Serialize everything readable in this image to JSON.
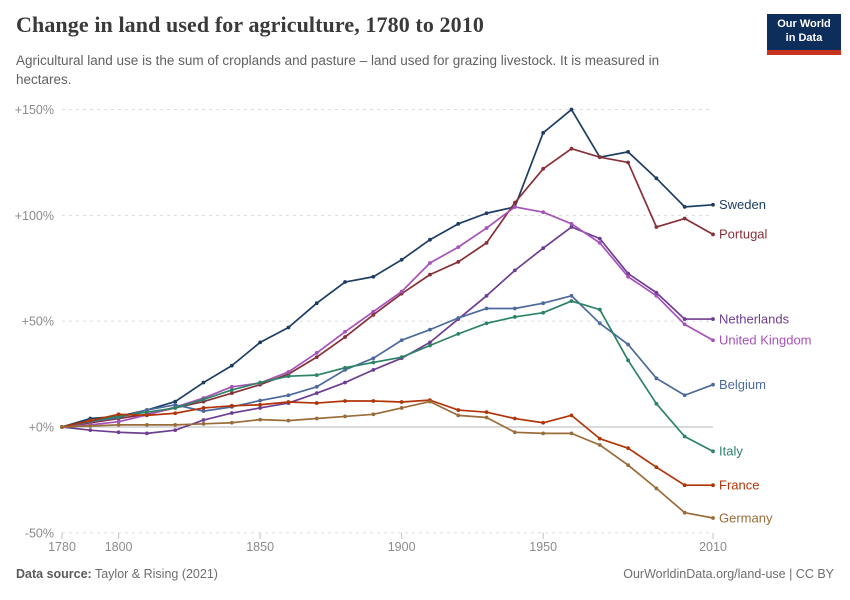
{
  "header": {
    "title": "Change in land used for agriculture, 1780 to 2010",
    "subtitle": "Agricultural land use is the sum of croplands and pasture – land used for grazing livestock. It is measured in hectares.",
    "logo": {
      "line1": "Our World",
      "line2": "in Data"
    }
  },
  "footer": {
    "datasource_label": "Data source:",
    "datasource_value": "Taylor & Rising (2021)",
    "attribution": "OurWorldinData.org/land-use | CC BY"
  },
  "colors": {
    "grid_dashed": "#dcdcdc",
    "zero_line": "#b5b5b5",
    "tick": "#c0c0c0",
    "axis_text": "#8b8b8b",
    "logo_bg": "#0d2d5a",
    "logo_bar": "#c8331f"
  },
  "chart_data": {
    "type": "line",
    "title": "Change in land used for agriculture, 1780 to 2010",
    "unit": "%",
    "grid": true,
    "legend_position": "end-of-line",
    "xlim": [
      1780,
      2010
    ],
    "ylim": [
      -50,
      155
    ],
    "xticks": [
      1780,
      1800,
      1850,
      1900,
      1950,
      2010
    ],
    "yticks": [
      -50,
      0,
      50,
      100,
      150
    ],
    "ytick_labels": [
      "-50%",
      "+0%",
      "+50%",
      "+100%",
      "+150%"
    ],
    "x": [
      1780,
      1790,
      1800,
      1810,
      1820,
      1830,
      1840,
      1850,
      1860,
      1870,
      1880,
      1890,
      1900,
      1910,
      1920,
      1930,
      1940,
      1950,
      1960,
      1970,
      1980,
      1990,
      2000,
      2010
    ],
    "series": [
      {
        "name": "Sweden",
        "color": "#1d3d63",
        "values": [
          0,
          4,
          5,
          8,
          12,
          21,
          29,
          40,
          47,
          58.5,
          68.5,
          71,
          79,
          88.5,
          96,
          101,
          104,
          139,
          150,
          127.5,
          130,
          117.5,
          104,
          105
        ]
      },
      {
        "name": "Portugal",
        "color": "#883039",
        "values": [
          0,
          2,
          4,
          6,
          9,
          12,
          16,
          20,
          25,
          33,
          42.5,
          53,
          63,
          72,
          78,
          87,
          106,
          122,
          131.5,
          127.5,
          125,
          94.5,
          98.5,
          91
        ]
      },
      {
        "name": "Netherlands",
        "color": "#6d3e91",
        "values": [
          0,
          -1.5,
          -2.5,
          -3,
          -1.5,
          3.3,
          6.6,
          9,
          11.3,
          16,
          21,
          27,
          32.5,
          40,
          51,
          62,
          74,
          84.5,
          94.5,
          89,
          72.5,
          63.5,
          51,
          51
        ]
      },
      {
        "name": "United Kingdom",
        "color": "#a652ba",
        "values": [
          0,
          1,
          2.5,
          5.7,
          9.4,
          13.7,
          19,
          20.8,
          26,
          35,
          45,
          54.5,
          64,
          77.5,
          85,
          94,
          104,
          101.5,
          96,
          87,
          71,
          62,
          48.5,
          41
        ]
      },
      {
        "name": "Belgium",
        "color": "#4c6a9c",
        "values": [
          0,
          2.5,
          4.5,
          8,
          10.5,
          7.5,
          9.5,
          12.5,
          15,
          19,
          27,
          32.5,
          41,
          46,
          51.5,
          56,
          56,
          58.5,
          62,
          49,
          39,
          23,
          15,
          20
        ]
      },
      {
        "name": "Italy",
        "color": "#2c8465",
        "values": [
          0,
          3,
          5,
          7,
          9,
          13,
          17.5,
          21,
          24,
          24.5,
          28,
          30.5,
          33,
          38.5,
          44,
          49,
          52,
          54,
          59.5,
          55.5,
          31.5,
          11,
          -4.5,
          -11.5
        ]
      },
      {
        "name": "France",
        "color": "#b13507",
        "values": [
          0,
          3,
          6,
          5.5,
          6.5,
          9,
          10,
          10.5,
          11.8,
          11.3,
          12.3,
          12.3,
          11.8,
          12.7,
          8,
          7,
          4,
          2,
          5.5,
          -5.5,
          -10,
          -19,
          -27.5,
          -27.5
        ]
      },
      {
        "name": "Germany",
        "color": "#996d39",
        "values": [
          0,
          0.5,
          1,
          1,
          1,
          1.5,
          2,
          3.5,
          3,
          4,
          5,
          6,
          9,
          12,
          5.5,
          4.5,
          -2.5,
          -3,
          -3,
          -8.5,
          -18,
          -29,
          -40.5,
          -43
        ]
      }
    ]
  }
}
